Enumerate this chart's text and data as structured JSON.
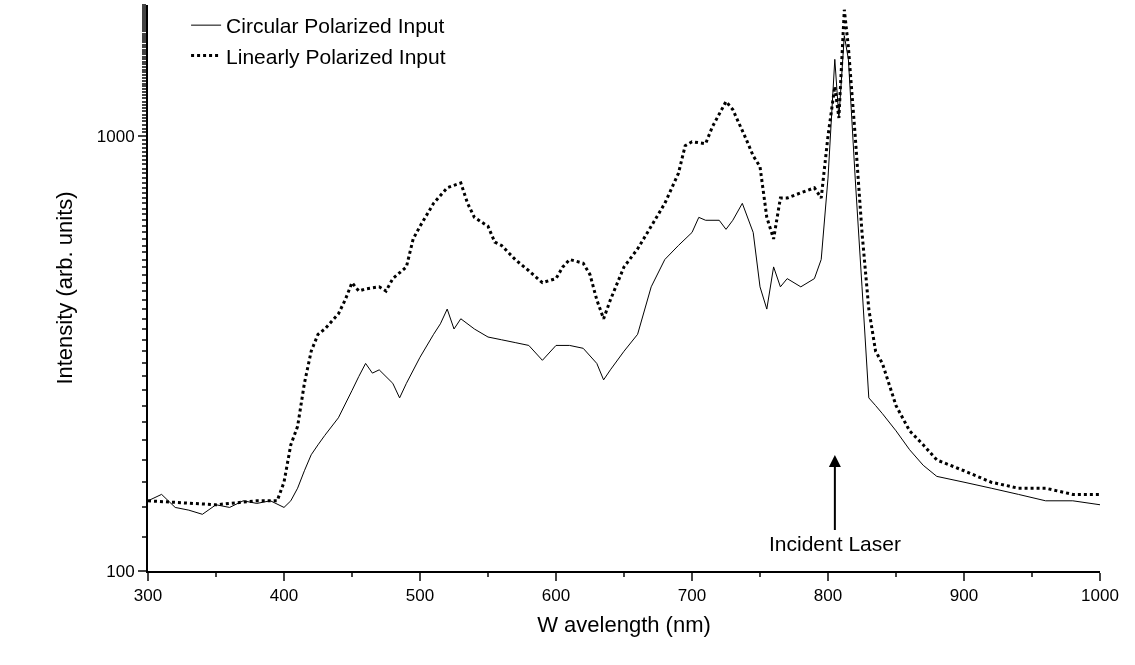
{
  "chart_data": {
    "type": "line",
    "xlabel": "W avelength (nm)",
    "ylabel": "Intensity (arb. units)",
    "log": "y",
    "grid": false,
    "legend": "top left",
    "marker": "none",
    "xlim": [
      300,
      1000
    ],
    "xticks": [
      300,
      400,
      500,
      600,
      700,
      800,
      900,
      1000
    ],
    "ylim": [
      100,
      2000
    ],
    "yticks": [
      100,
      1000
    ],
    "annotations": [
      "Incident Laser"
    ],
    "series": [
      {
        "name": "Circular Polarized Input",
        "color": "#000000",
        "line_style": "solid",
        "x": [
          300,
          310,
          320,
          330,
          340,
          350,
          360,
          370,
          380,
          390,
          400,
          405,
          410,
          415,
          420,
          425,
          430,
          440,
          450,
          455,
          460,
          465,
          470,
          480,
          485,
          490,
          500,
          510,
          515,
          520,
          525,
          530,
          540,
          550,
          560,
          570,
          580,
          590,
          600,
          610,
          620,
          630,
          635,
          640,
          650,
          660,
          670,
          680,
          690,
          700,
          705,
          710,
          720,
          725,
          730,
          737,
          745,
          750,
          755,
          760,
          765,
          770,
          780,
          790,
          795,
          800,
          805,
          808,
          812,
          815,
          820,
          825,
          830,
          835,
          840,
          850,
          860,
          870,
          880,
          900,
          920,
          940,
          960,
          980,
          1000
        ],
        "values": [
          145,
          150,
          140,
          138,
          135,
          142,
          140,
          145,
          143,
          145,
          140,
          145,
          155,
          170,
          185,
          195,
          205,
          225,
          260,
          280,
          300,
          285,
          290,
          270,
          250,
          270,
          310,
          350,
          370,
          400,
          360,
          380,
          360,
          345,
          340,
          335,
          330,
          305,
          330,
          330,
          325,
          300,
          275,
          290,
          320,
          350,
          450,
          520,
          560,
          600,
          650,
          640,
          640,
          610,
          640,
          700,
          600,
          450,
          400,
          500,
          450,
          470,
          450,
          470,
          520,
          800,
          1500,
          1100,
          1700,
          1500,
          800,
          450,
          250,
          240,
          230,
          210,
          190,
          175,
          165,
          160,
          155,
          150,
          145,
          145,
          142
        ]
      },
      {
        "name": "Linearly Polarized Input",
        "color": "#000000",
        "line_style": "dotted",
        "x": [
          300,
          350,
          380,
          395,
          400,
          405,
          410,
          415,
          420,
          425,
          430,
          440,
          445,
          450,
          455,
          460,
          470,
          475,
          480,
          490,
          495,
          500,
          510,
          520,
          525,
          530,
          535,
          540,
          550,
          555,
          560,
          570,
          580,
          590,
          600,
          605,
          610,
          620,
          625,
          630,
          635,
          640,
          650,
          660,
          670,
          680,
          690,
          695,
          700,
          710,
          715,
          725,
          730,
          740,
          745,
          750,
          755,
          760,
          765,
          770,
          780,
          790,
          795,
          800,
          805,
          808,
          812,
          815,
          820,
          825,
          830,
          835,
          840,
          850,
          860,
          870,
          880,
          900,
          920,
          940,
          960,
          980,
          1000
        ],
        "values": [
          145,
          142,
          145,
          145,
          160,
          195,
          215,
          270,
          320,
          350,
          360,
          390,
          420,
          460,
          440,
          445,
          450,
          440,
          470,
          500,
          580,
          620,
          700,
          760,
          770,
          780,
          700,
          650,
          620,
          570,
          560,
          520,
          490,
          460,
          470,
          500,
          520,
          510,
          480,
          420,
          380,
          420,
          500,
          550,
          620,
          700,
          820,
          950,
          970,
          960,
          1050,
          1200,
          1150,
          980,
          900,
          850,
          650,
          580,
          720,
          720,
          740,
          760,
          720,
          1000,
          1300,
          1100,
          1950,
          1600,
          1000,
          600,
          400,
          320,
          300,
          240,
          210,
          195,
          180,
          170,
          160,
          155,
          155,
          150,
          150
        ]
      }
    ]
  }
}
